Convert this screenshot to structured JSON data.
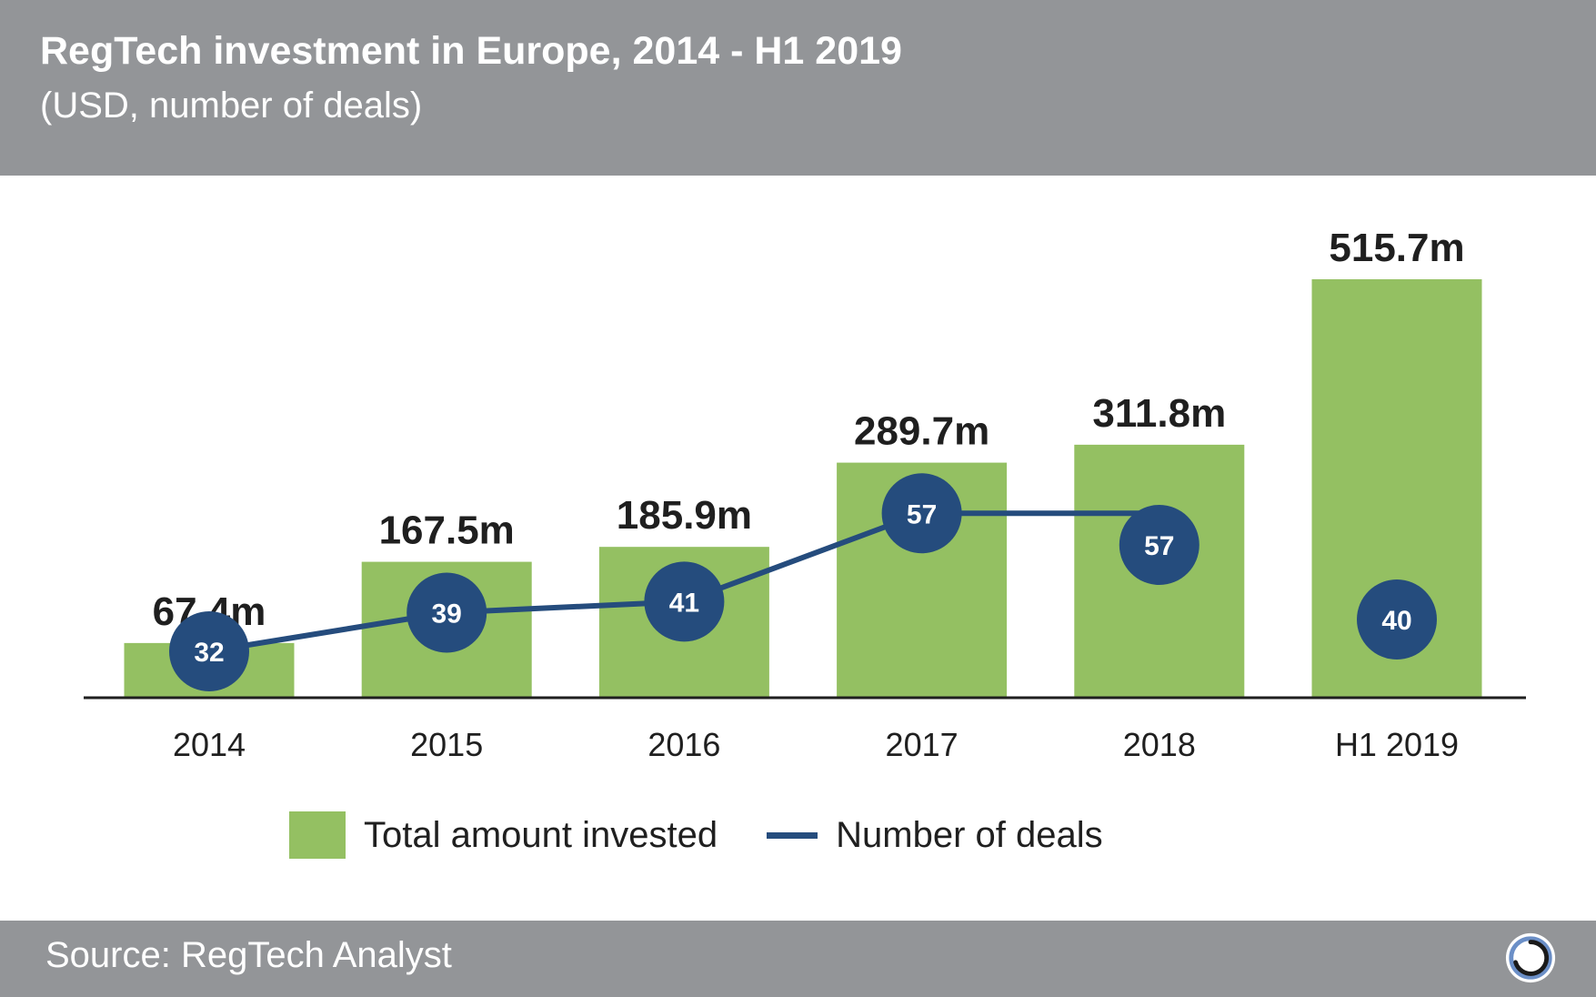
{
  "header": {
    "title": "RegTech investment in Europe, 2014 - H1 2019",
    "subtitle": "(USD, number of deals)"
  },
  "legend": {
    "bars_label": "Total amount invested",
    "line_label": "Number of deals"
  },
  "footer": {
    "source": "Source: RegTech Analyst"
  },
  "colors": {
    "bar": "#94c062",
    "line": "#254c7d",
    "header_bg": "#939598",
    "axis": "#1f1f1f"
  },
  "icons": {
    "logo": "circle-ring-logo-icon"
  },
  "chart_data": {
    "type": "bar",
    "categories": [
      "2014",
      "2015",
      "2016",
      "2017",
      "2018",
      "H1 2019"
    ],
    "series": [
      {
        "name": "Total amount invested",
        "type": "bar",
        "values": [
          67.4,
          167.5,
          185.9,
          289.7,
          311.8,
          515.7
        ],
        "labels": [
          "67.4m",
          "167.5m",
          "185.9m",
          "289.7m",
          "311.8m",
          "515.7m"
        ]
      },
      {
        "name": "Number of deals",
        "type": "line",
        "values": [
          32,
          39,
          41,
          57,
          57,
          40
        ],
        "labels": [
          "32",
          "39",
          "41",
          "57",
          "57",
          "40"
        ],
        "line_connects_through": "2018"
      }
    ],
    "title": "RegTech investment in Europe, 2014 - H1 2019",
    "subtitle": "(USD, number of deals)",
    "ylim": [
      0,
      560
    ],
    "grid": false,
    "legend_position": "bottom"
  }
}
